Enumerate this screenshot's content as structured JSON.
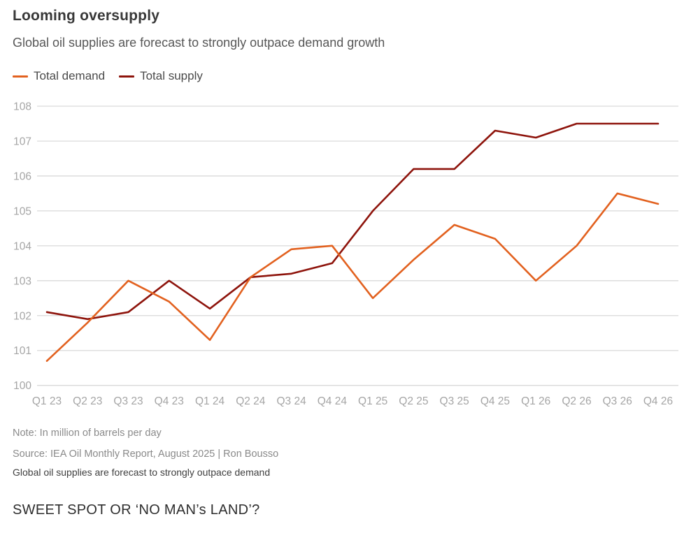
{
  "header": {
    "title": "Looming oversupply",
    "subtitle": "Global oil supplies are forecast to strongly outpace demand growth"
  },
  "legend": [
    {
      "label": "Total demand",
      "color": "#E2611F"
    },
    {
      "label": "Total supply",
      "color": "#8E140C"
    }
  ],
  "chart_data": {
    "type": "line",
    "title": "Looming oversupply",
    "subtitle": "Global oil supplies are forecast to strongly outpace demand growth",
    "categories": [
      "Q1 23",
      "Q2 23",
      "Q3 23",
      "Q4 23",
      "Q1 24",
      "Q2 24",
      "Q3 24",
      "Q4 24",
      "Q1 25",
      "Q2 25",
      "Q3 25",
      "Q4 25",
      "Q1 26",
      "Q2 26",
      "Q3 26",
      "Q4 26"
    ],
    "series": [
      {
        "name": "Total demand",
        "color": "#E2611F",
        "values": [
          100.7,
          101.8,
          103.0,
          102.4,
          101.3,
          103.1,
          103.9,
          104.0,
          102.5,
          103.6,
          104.6,
          104.2,
          103.0,
          104.0,
          105.5,
          105.2
        ]
      },
      {
        "name": "Total supply",
        "color": "#8E140C",
        "values": [
          102.1,
          101.9,
          102.1,
          103.0,
          102.2,
          103.1,
          103.2,
          103.5,
          105.0,
          106.2,
          106.2,
          107.3,
          107.1,
          107.5,
          107.5,
          107.5
        ]
      }
    ],
    "ylim": [
      100,
      108
    ],
    "ytick_step": 1,
    "yticks": [
      100,
      101,
      102,
      103,
      104,
      105,
      106,
      107,
      108
    ],
    "grid": true,
    "legend_position": "top-left",
    "xlabel": "",
    "ylabel": ""
  },
  "colors": {
    "gridline": "#d9d9d9",
    "axis_label": "#a5a5a5"
  },
  "footer": {
    "note": "Note: In million of barrels per day",
    "source": "Source: IEA Oil Monthly Report, August 2025 | Ron Bousso",
    "caption": "Global oil supplies are forecast to strongly outpace demand",
    "heading": "SWEET SPOT OR ‘NO MAN’s LAND’?"
  }
}
